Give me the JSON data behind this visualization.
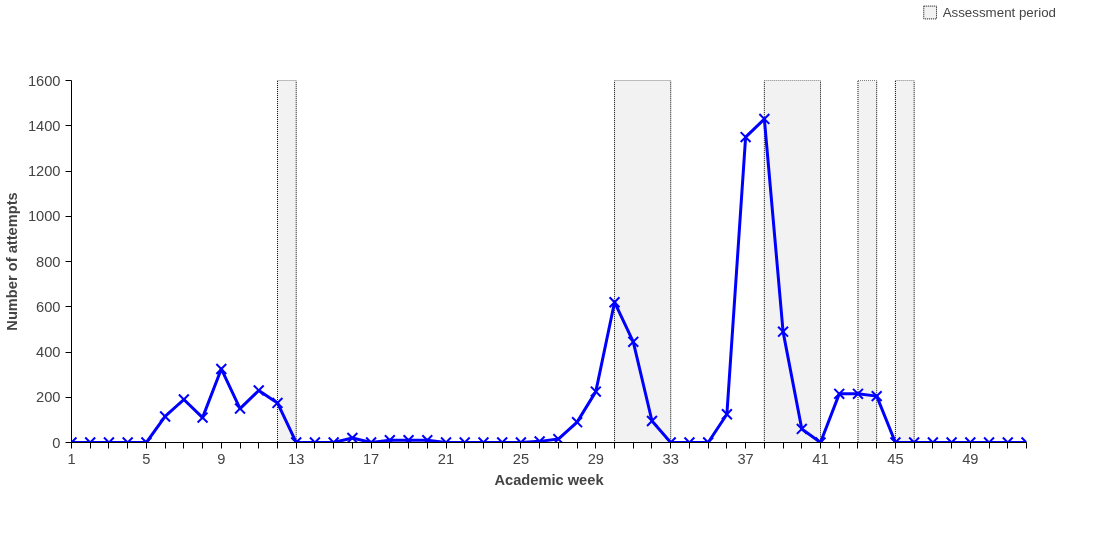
{
  "chart_data": {
    "type": "line",
    "xlabel": "Academic week",
    "ylabel": "Number of attempts",
    "x": [
      1,
      2,
      3,
      4,
      5,
      6,
      7,
      8,
      9,
      10,
      11,
      12,
      13,
      14,
      15,
      16,
      17,
      18,
      19,
      20,
      21,
      22,
      23,
      24,
      25,
      26,
      27,
      28,
      29,
      30,
      31,
      32,
      33,
      34,
      35,
      36,
      37,
      38,
      39,
      40,
      41,
      42,
      43,
      44,
      45,
      46,
      47,
      48,
      49,
      50,
      51,
      52
    ],
    "series": [
      {
        "color": "#0000ff",
        "values": [
          0,
          0,
          0,
          0,
          0,
          115,
          190,
          110,
          325,
          150,
          230,
          175,
          0,
          0,
          0,
          20,
          0,
          10,
          10,
          10,
          0,
          0,
          0,
          0,
          0,
          5,
          15,
          90,
          225,
          620,
          445,
          95,
          0,
          0,
          0,
          125,
          1350,
          1430,
          490,
          60,
          0,
          215,
          215,
          205,
          0,
          0,
          0,
          0,
          0,
          0,
          0,
          0
        ]
      }
    ],
    "xlim": [
      1,
      52
    ],
    "xticks": [
      1,
      {
        "value": 2,
        "label": null
      },
      {
        "value": 3,
        "label": null
      },
      {
        "value": 4,
        "label": null
      },
      5,
      {
        "value": 6,
        "label": null
      },
      {
        "value": 7,
        "label": null
      },
      {
        "value": 8,
        "label": null
      },
      9,
      {
        "value": 10,
        "label": null
      },
      {
        "value": 11,
        "label": null
      },
      {
        "value": 12,
        "label": null
      },
      13,
      {
        "value": 14,
        "label": null
      },
      {
        "value": 15,
        "label": null
      },
      {
        "value": 16,
        "label": null
      },
      17,
      {
        "value": 18,
        "label": null
      },
      {
        "value": 19,
        "label": null
      },
      {
        "value": 20,
        "label": null
      },
      21,
      {
        "value": 22,
        "label": null
      },
      {
        "value": 23,
        "label": null
      },
      {
        "value": 24,
        "label": null
      },
      25,
      {
        "value": 26,
        "label": null
      },
      {
        "value": 27,
        "label": null
      },
      {
        "value": 28,
        "label": null
      },
      29,
      {
        "value": 30,
        "label": null
      },
      {
        "value": 31,
        "label": null
      },
      {
        "value": 32,
        "label": null
      },
      33,
      {
        "value": 34,
        "label": null
      },
      {
        "value": 35,
        "label": null
      },
      {
        "value": 36,
        "label": null
      },
      37,
      {
        "value": 38,
        "label": null
      },
      {
        "value": 39,
        "label": null
      },
      {
        "value": 40,
        "label": null
      },
      41,
      {
        "value": 42,
        "label": null
      },
      {
        "value": 43,
        "label": null
      },
      {
        "value": 44,
        "label": null
      },
      45,
      {
        "value": 46,
        "label": null
      },
      {
        "value": 47,
        "label": null
      },
      {
        "value": 48,
        "label": null
      },
      49,
      {
        "value": 50,
        "label": null
      },
      {
        "value": 51,
        "label": null
      },
      {
        "value": 52,
        "label": null
      }
    ],
    "ylim": [
      0,
      1600
    ],
    "yticks": [
      0,
      200,
      400,
      600,
      800,
      1000,
      1200,
      1400,
      1600
    ],
    "bands": [
      {
        "axis": "x",
        "from": 12,
        "to": 13,
        "label": "Assessment period",
        "color": "#f2f2f2"
      },
      {
        "axis": "x",
        "from": 30,
        "to": 33,
        "color": "#f2f2f2"
      },
      {
        "axis": "x",
        "from": 38,
        "to": 41,
        "color": "#f2f2f2"
      },
      {
        "axis": "x",
        "from": 43,
        "to": 44,
        "color": "#f2f2f2"
      },
      {
        "axis": "x",
        "from": 45,
        "to": 46,
        "color": "#f2f2f2"
      }
    ],
    "grid": false,
    "legend": "top right",
    "marker": "cross",
    "line_style": "solid"
  }
}
